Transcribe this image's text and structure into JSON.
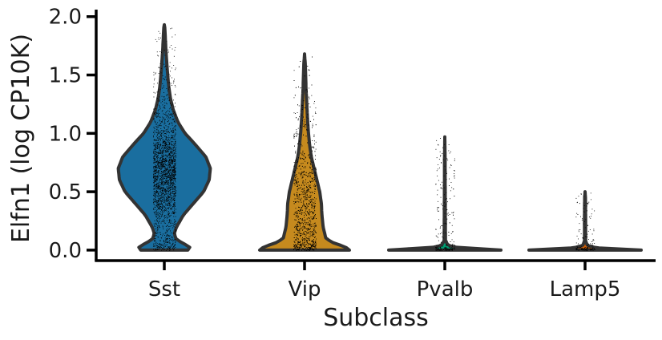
{
  "chart_data": {
    "type": "violin",
    "xlabel": "Subclass",
    "ylabel": "Elfn1 (log CP10K)",
    "ylim": [
      -0.09,
      2.06
    ],
    "yticks": [
      0.0,
      0.5,
      1.0,
      1.5,
      2.0
    ],
    "ytick_labels": [
      "0.0",
      "0.5",
      "1.0",
      "1.5",
      "2.0"
    ],
    "grid": false,
    "legend": "none",
    "categories": [
      "Sst",
      "Vip",
      "Pvalb",
      "Lamp5"
    ],
    "series": [
      {
        "category": "Sst",
        "color": "#1a6e9f",
        "max": 1.93,
        "points_color": "#000000",
        "profile": [
          [
            0.0,
            0.42
          ],
          [
            0.03,
            0.46
          ],
          [
            0.06,
            0.32
          ],
          [
            0.1,
            0.2
          ],
          [
            0.15,
            0.18
          ],
          [
            0.2,
            0.22
          ],
          [
            0.3,
            0.34
          ],
          [
            0.4,
            0.52
          ],
          [
            0.5,
            0.7
          ],
          [
            0.6,
            0.8
          ],
          [
            0.7,
            0.82
          ],
          [
            0.8,
            0.74
          ],
          [
            0.9,
            0.56
          ],
          [
            1.0,
            0.37
          ],
          [
            1.1,
            0.24
          ],
          [
            1.2,
            0.16
          ],
          [
            1.3,
            0.11
          ],
          [
            1.4,
            0.08
          ],
          [
            1.5,
            0.06
          ],
          [
            1.6,
            0.045
          ],
          [
            1.7,
            0.03
          ],
          [
            1.8,
            0.02
          ],
          [
            1.9,
            0.01
          ],
          [
            1.93,
            0.0
          ]
        ]
      },
      {
        "category": "Vip",
        "color": "#c68a1e",
        "max": 1.68,
        "points_color": "#000000",
        "profile": [
          [
            0.0,
            0.8
          ],
          [
            0.03,
            0.72
          ],
          [
            0.06,
            0.52
          ],
          [
            0.1,
            0.38
          ],
          [
            0.2,
            0.33
          ],
          [
            0.3,
            0.31
          ],
          [
            0.4,
            0.3
          ],
          [
            0.5,
            0.27
          ],
          [
            0.6,
            0.22
          ],
          [
            0.7,
            0.17
          ],
          [
            0.8,
            0.12
          ],
          [
            0.9,
            0.09
          ],
          [
            1.0,
            0.07
          ],
          [
            1.1,
            0.055
          ],
          [
            1.2,
            0.045
          ],
          [
            1.3,
            0.035
          ],
          [
            1.4,
            0.025
          ],
          [
            1.5,
            0.02
          ],
          [
            1.6,
            0.012
          ],
          [
            1.68,
            0.0
          ]
        ]
      },
      {
        "category": "Pvalb",
        "color": "#009e73",
        "max": 0.97,
        "points_color": "#000000",
        "profile": [
          [
            0.0,
            1.0
          ],
          [
            0.01,
            0.7
          ],
          [
            0.02,
            0.25
          ],
          [
            0.04,
            0.06
          ],
          [
            0.08,
            0.012
          ],
          [
            0.2,
            0.01
          ],
          [
            0.4,
            0.008
          ],
          [
            0.6,
            0.006
          ],
          [
            0.8,
            0.005
          ],
          [
            0.97,
            0.0
          ]
        ]
      },
      {
        "category": "Lamp5",
        "color": "#d55e00",
        "max": 0.5,
        "points_color": "#000000",
        "profile": [
          [
            0.0,
            1.0
          ],
          [
            0.01,
            0.6
          ],
          [
            0.02,
            0.2
          ],
          [
            0.04,
            0.04
          ],
          [
            0.08,
            0.01
          ],
          [
            0.2,
            0.01
          ],
          [
            0.35,
            0.009
          ],
          [
            0.45,
            0.007
          ],
          [
            0.5,
            0.0
          ]
        ]
      }
    ]
  }
}
